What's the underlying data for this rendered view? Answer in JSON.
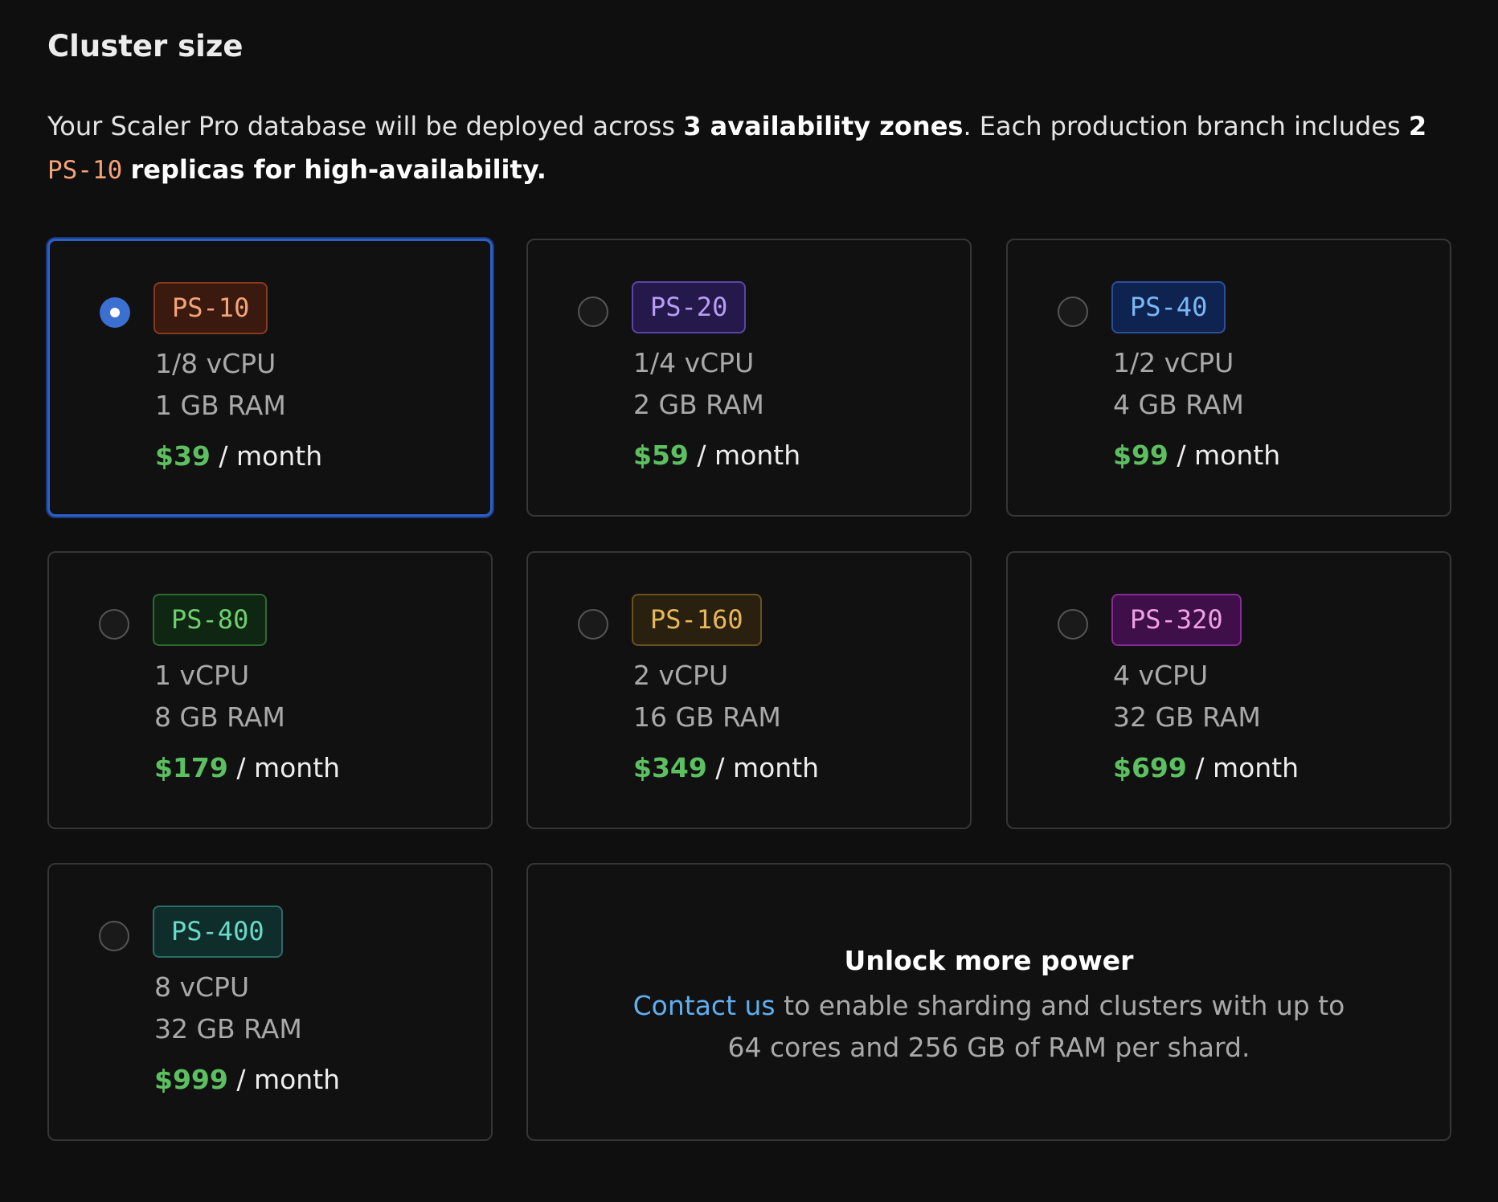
{
  "header": {
    "title": "Cluster size"
  },
  "intro": {
    "part1": "Your Scaler Pro database will be deployed across ",
    "zones": "3 availability zones",
    "part2": ". Each production branch includes ",
    "count": "2",
    "badge": "PS-10",
    "part3": "replicas for high-availability."
  },
  "price_unit": "/ month",
  "plans": [
    {
      "badge": "PS-10",
      "cpu": "1/8 vCPU",
      "ram": "1 GB RAM",
      "price": "$39",
      "selected": true
    },
    {
      "badge": "PS-20",
      "cpu": "1/4 vCPU",
      "ram": "2 GB RAM",
      "price": "$59",
      "selected": false
    },
    {
      "badge": "PS-40",
      "cpu": "1/2 vCPU",
      "ram": "4 GB RAM",
      "price": "$99",
      "selected": false
    },
    {
      "badge": "PS-80",
      "cpu": "1 vCPU",
      "ram": "8 GB RAM",
      "price": "$179",
      "selected": false
    },
    {
      "badge": "PS-160",
      "cpu": "2 vCPU",
      "ram": "16 GB RAM",
      "price": "$349",
      "selected": false
    },
    {
      "badge": "PS-320",
      "cpu": "4 vCPU",
      "ram": "32 GB RAM",
      "price": "$699",
      "selected": false
    },
    {
      "badge": "PS-400",
      "cpu": "8 vCPU",
      "ram": "32 GB RAM",
      "price": "$999",
      "selected": false
    }
  ],
  "contact": {
    "title": "Unlock more power",
    "link": "Contact us",
    "text": "to enable sharding and clusters with up to 64 cores and 256 GB of RAM per shard."
  }
}
